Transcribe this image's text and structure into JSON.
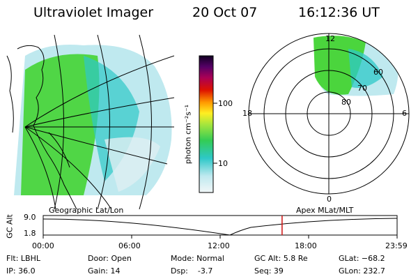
{
  "header": {
    "title": "Ultraviolet Imager",
    "date": "20 Oct 07",
    "time": "16:12:36 UT"
  },
  "colorbar": {
    "unit_label": "photon cm⁻²s⁻¹",
    "ticks": [
      "100",
      "10"
    ]
  },
  "polar": {
    "mlt_labels": {
      "top": "12",
      "bottom": "0",
      "left": "18",
      "right": "6"
    },
    "lat_labels": [
      "60",
      "70",
      "80"
    ]
  },
  "maps": {
    "left_caption": "Geographic Lat/Lon",
    "right_caption": "Apex MLat/MLT"
  },
  "timeline": {
    "axis_label": "GC Alt",
    "y_ticks": [
      "9.0",
      "1.8"
    ],
    "x_ticks": [
      "00:00",
      "06:00",
      "12:00",
      "18:00",
      "23:59"
    ],
    "current_time_fraction": 0.675
  },
  "info": {
    "flt": "Flt: LBHL",
    "ip": "IP: 36.0",
    "door": "Door: Open",
    "gain": "Gain: 14",
    "mode": "Mode: Normal",
    "dsp": "Dsp:    -3.7",
    "gc_alt": "GC Alt: 5.8 Re",
    "seq": "Seq: 39",
    "glat": "GLat: −68.2",
    "glon": "GLon: 232.7"
  },
  "colors": {
    "aurora_green": "#44d433",
    "aurora_cyan": "#2ec8c8",
    "pale_cyan": "#bfe9ef",
    "marker_red": "#d01010"
  }
}
